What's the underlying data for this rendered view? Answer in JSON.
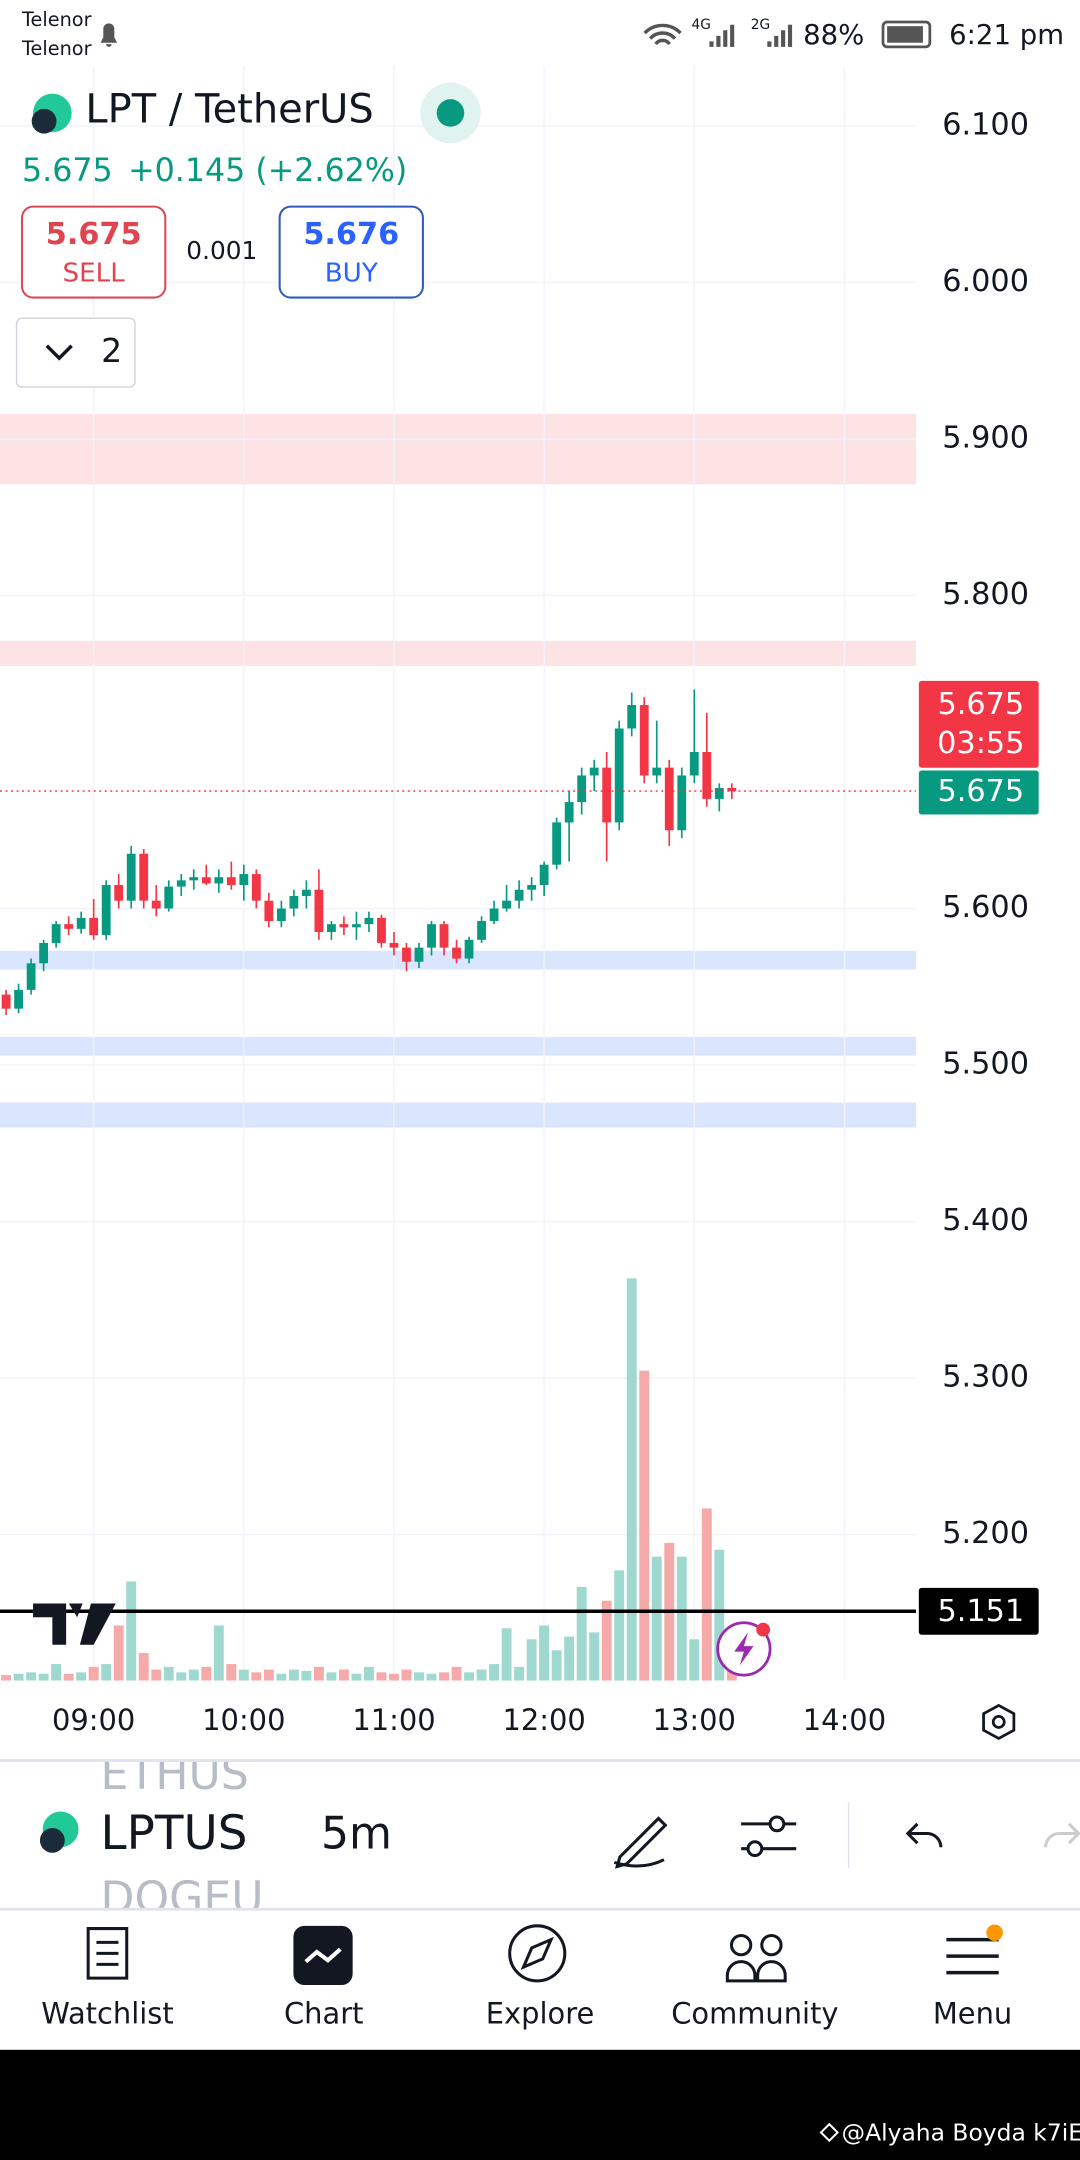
{
  "status_bar": {
    "carrier_1": "Telenor",
    "carrier_2": "Telenor",
    "network_1": "4G",
    "network_2": "2G",
    "battery": "88%",
    "time": "6:21 pm"
  },
  "header": {
    "symbol": "LPT / TetherUS",
    "price": "5.675",
    "change": "+0.145 (+2.62%)",
    "sell_price": "5.675",
    "sell_label": "SELL",
    "spread": "0.001",
    "buy_price": "5.676",
    "buy_label": "BUY",
    "layers": "2"
  },
  "chart_data": {
    "type": "candlestick",
    "x": [
      "08:25",
      "08:30",
      "08:35",
      "08:40",
      "08:45",
      "08:50",
      "08:55",
      "09:00",
      "09:05",
      "09:10",
      "09:15",
      "09:20",
      "09:25",
      "09:30",
      "09:35",
      "09:40",
      "09:45",
      "09:50",
      "09:55",
      "10:00",
      "10:05",
      "10:10",
      "10:15",
      "10:20",
      "10:25",
      "10:30",
      "10:35",
      "10:40",
      "10:45",
      "10:50",
      "10:55",
      "11:00",
      "11:05",
      "11:10",
      "11:15",
      "11:20",
      "11:25",
      "11:30",
      "11:35",
      "11:40",
      "11:45",
      "11:50",
      "11:55",
      "12:00",
      "12:05",
      "12:10",
      "12:15",
      "12:20",
      "12:25",
      "12:30",
      "12:35",
      "12:40",
      "12:45",
      "12:50",
      "12:55",
      "13:00",
      "13:05",
      "13:10",
      "13:15"
    ],
    "open": [
      5.545,
      5.536,
      5.548,
      5.565,
      5.578,
      5.59,
      5.587,
      5.594,
      5.583,
      5.615,
      5.605,
      5.635,
      5.605,
      5.6,
      5.614,
      5.618,
      5.62,
      5.616,
      5.62,
      5.615,
      5.622,
      5.605,
      5.592,
      5.6,
      5.608,
      5.612,
      5.585,
      5.59,
      5.588,
      5.59,
      5.594,
      5.578,
      5.575,
      5.566,
      5.575,
      5.59,
      5.575,
      5.568,
      5.58,
      5.592,
      5.6,
      5.605,
      5.612,
      5.615,
      5.628,
      5.655,
      5.668,
      5.685,
      5.69,
      5.655,
      5.715,
      5.73,
      5.685,
      5.69,
      5.65,
      5.685,
      5.7,
      5.67,
      5.677
    ],
    "high": [
      5.548,
      5.552,
      5.568,
      5.58,
      5.592,
      5.595,
      5.598,
      5.606,
      5.618,
      5.622,
      5.64,
      5.638,
      5.615,
      5.618,
      5.622,
      5.625,
      5.628,
      5.625,
      5.63,
      5.628,
      5.625,
      5.61,
      5.605,
      5.612,
      5.618,
      5.625,
      5.592,
      5.595,
      5.598,
      5.598,
      5.596,
      5.585,
      5.578,
      5.578,
      5.592,
      5.592,
      5.58,
      5.582,
      5.595,
      5.605,
      5.615,
      5.618,
      5.62,
      5.63,
      5.658,
      5.675,
      5.69,
      5.695,
      5.7,
      5.72,
      5.738,
      5.735,
      5.72,
      5.695,
      5.69,
      5.74,
      5.725,
      5.68,
      5.68
    ],
    "low": [
      5.532,
      5.533,
      5.545,
      5.56,
      5.575,
      5.583,
      5.584,
      5.58,
      5.58,
      5.6,
      5.6,
      5.6,
      5.595,
      5.598,
      5.608,
      5.612,
      5.615,
      5.61,
      5.612,
      5.605,
      5.6,
      5.588,
      5.588,
      5.595,
      5.6,
      5.58,
      5.58,
      5.583,
      5.58,
      5.585,
      5.575,
      5.57,
      5.56,
      5.562,
      5.57,
      5.57,
      5.565,
      5.565,
      5.578,
      5.59,
      5.598,
      5.6,
      5.605,
      5.608,
      5.625,
      5.63,
      5.66,
      5.675,
      5.63,
      5.65,
      5.71,
      5.68,
      5.68,
      5.64,
      5.645,
      5.68,
      5.665,
      5.662,
      5.67
    ],
    "close": [
      5.536,
      5.548,
      5.565,
      5.578,
      5.59,
      5.587,
      5.594,
      5.583,
      5.615,
      5.605,
      5.635,
      5.605,
      5.6,
      5.614,
      5.618,
      5.62,
      5.616,
      5.62,
      5.615,
      5.622,
      5.605,
      5.592,
      5.6,
      5.608,
      5.612,
      5.585,
      5.59,
      5.588,
      5.59,
      5.594,
      5.578,
      5.575,
      5.566,
      5.575,
      5.59,
      5.575,
      5.568,
      5.58,
      5.592,
      5.6,
      5.605,
      5.612,
      5.615,
      5.628,
      5.655,
      5.668,
      5.685,
      5.69,
      5.655,
      5.715,
      5.73,
      5.685,
      5.69,
      5.65,
      5.685,
      5.7,
      5.67,
      5.677,
      5.675
    ],
    "volume": [
      4,
      5,
      6,
      5,
      12,
      5,
      6,
      10,
      12,
      40,
      72,
      20,
      8,
      10,
      6,
      8,
      10,
      40,
      12,
      8,
      6,
      8,
      5,
      8,
      7,
      10,
      6,
      8,
      5,
      10,
      6,
      5,
      8,
      6,
      5,
      6,
      10,
      6,
      8,
      12,
      38,
      10,
      30,
      40,
      22,
      32,
      68,
      35,
      58,
      80,
      292,
      225,
      90,
      100,
      90,
      30,
      125,
      95,
      20
    ],
    "up_color": "#089981",
    "down_color": "#f23645",
    "up_volume_color": "#9fd8cf",
    "down_volume_color": "#f5aaa9",
    "ylim": [
      5.1067,
      6.1382
    ],
    "yticks": [
      {
        "value": 6.1,
        "label": "6.100"
      },
      {
        "value": 6.0,
        "label": "6.000"
      },
      {
        "value": 5.9,
        "label": "5.900"
      },
      {
        "value": 5.8,
        "label": "5.800"
      },
      {
        "value": 5.6,
        "label": "5.600"
      },
      {
        "value": 5.5,
        "label": "5.500"
      },
      {
        "value": 5.4,
        "label": "5.400"
      },
      {
        "value": 5.3,
        "label": "5.300"
      },
      {
        "value": 5.2,
        "label": "5.200"
      }
    ],
    "xticks": [
      "09:00",
      "10:00",
      "11:00",
      "12:00",
      "13:00",
      "14:00"
    ],
    "grid": true,
    "zones": [
      {
        "from": 5.916,
        "to": 5.871,
        "color": "#fde3e4"
      },
      {
        "from": 5.771,
        "to": 5.755,
        "color": "#fde3e4"
      },
      {
        "from": 5.573,
        "to": 5.561,
        "color": "#d9e6fd"
      },
      {
        "from": 5.518,
        "to": 5.506,
        "color": "#d9e6fd"
      },
      {
        "from": 5.476,
        "to": 5.46,
        "color": "#d9e6fd"
      }
    ],
    "last_price": 5.675,
    "countdown": "03:55",
    "bid_price": 5.675,
    "hline": 5.151
  },
  "toolbar": {
    "symbol_above": "ETHUS",
    "symbol": "LPTUS",
    "symbol_below": "DOGEU",
    "interval": "5m"
  },
  "nav": [
    "Watchlist",
    "Chart",
    "Explore",
    "Community",
    "Menu"
  ],
  "watermark": "@Alyaha Boyda k7iE"
}
